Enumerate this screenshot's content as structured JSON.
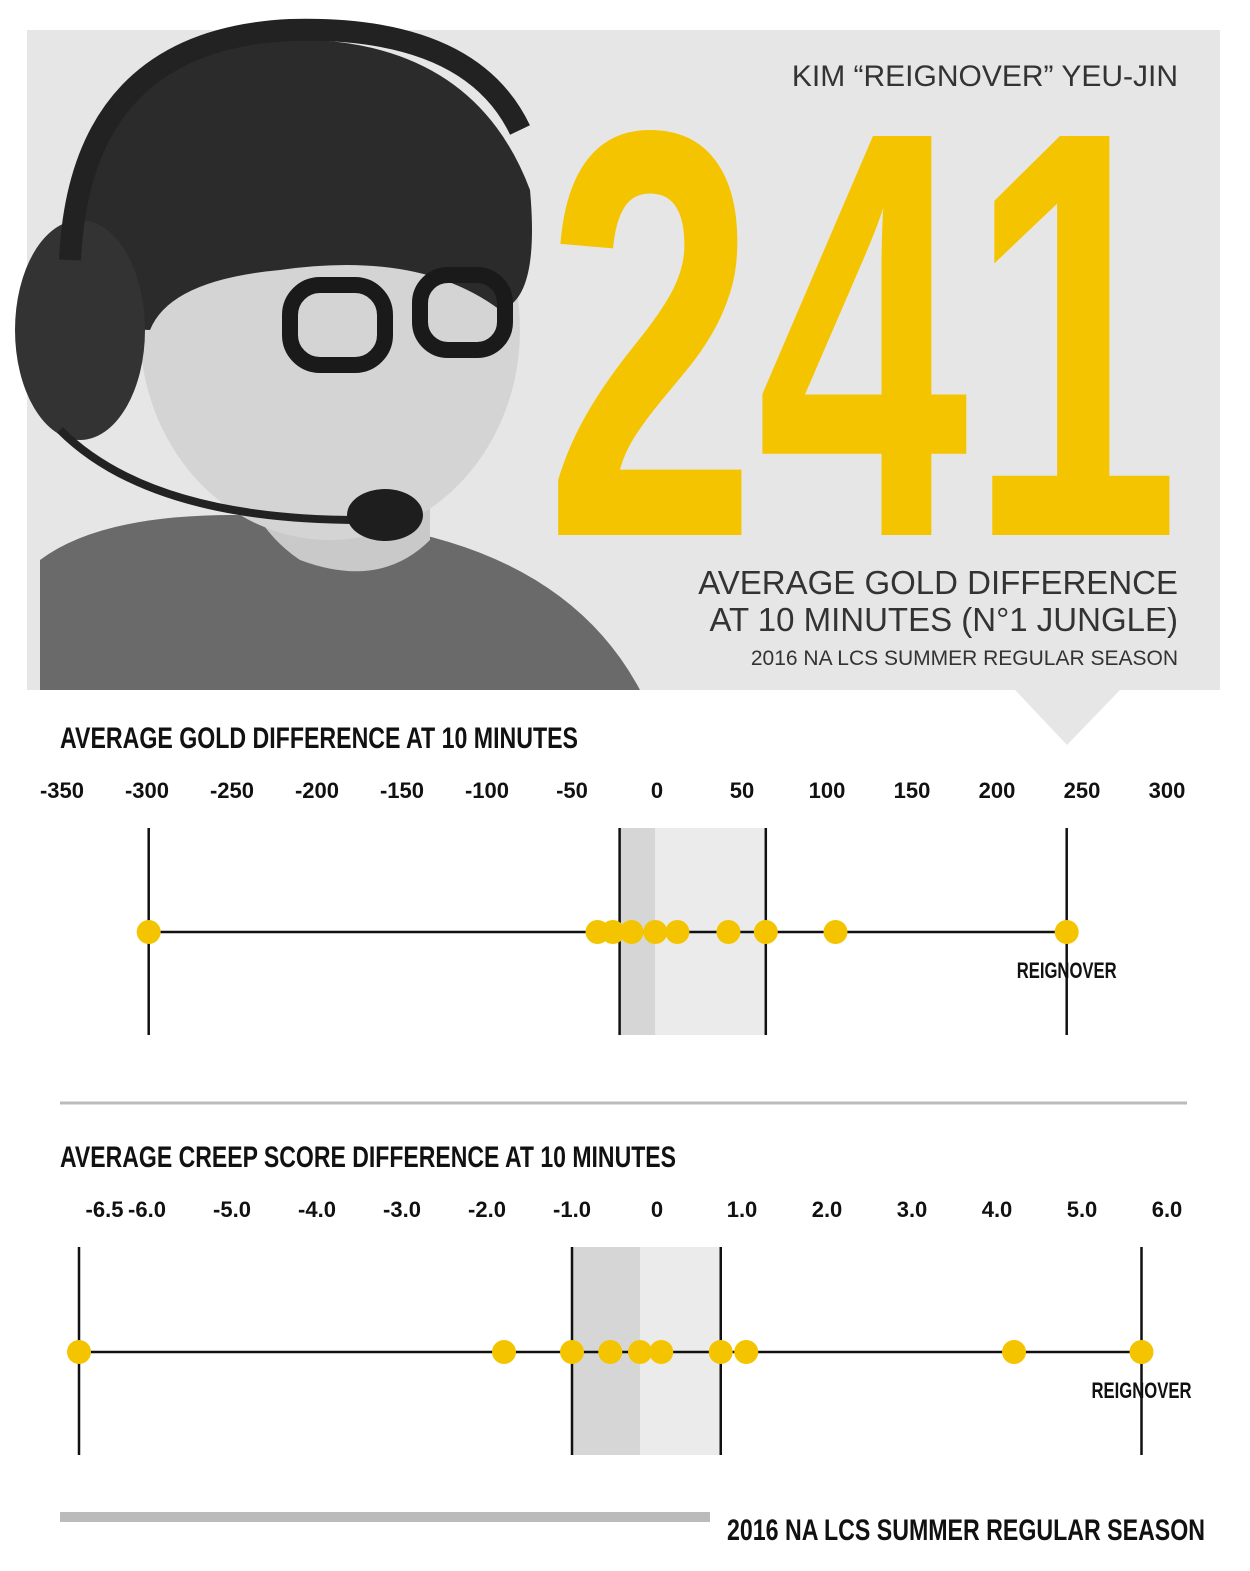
{
  "header": {
    "name": "KIM “REIGNOVER” YEU-JIN",
    "big_number": 241,
    "subtitle_lines": [
      "AVERAGE GOLD DIFFERENCE",
      "AT 10 MINUTES (N°1 JUNGLE)"
    ],
    "season": "2016 NA LCS SUMMER REGULAR SEASON"
  },
  "chart_data": [
    {
      "type": "strip",
      "title": "AVERAGE GOLD DIFFERENCE AT 10 MINUTES",
      "color": "#f5c400",
      "xlim": [
        -350,
        310
      ],
      "xticks": [
        -350,
        -300,
        -250,
        -200,
        -150,
        -100,
        -50,
        0,
        50,
        100,
        150,
        200,
        250,
        300
      ],
      "values": [
        -299,
        -35,
        -26,
        -15,
        -1,
        12,
        42,
        64,
        105,
        241
      ],
      "band": [
        -22,
        -1,
        64
      ],
      "annotations": [
        {
          "text": "REIGNOVER",
          "x": 241
        }
      ]
    },
    {
      "type": "strip",
      "title": "AVERAGE CREEP SCORE DIFFERENCE AT 10 MINUTES",
      "color": "#f5c400",
      "xlim": [
        -7,
        6.2
      ],
      "xticks": [
        -6.5,
        {
          "value": -6,
          "label": "-6.0"
        },
        {
          "value": -5,
          "label": "-5.0"
        },
        {
          "value": -4,
          "label": "-4.0"
        },
        {
          "value": -3,
          "label": "-3.0"
        },
        {
          "value": -2,
          "label": "-2.0"
        },
        {
          "value": -1,
          "label": "-1.0"
        },
        0,
        {
          "value": 1,
          "label": "1.0"
        },
        {
          "value": 2,
          "label": "2.0"
        },
        {
          "value": 3,
          "label": "3.0"
        },
        {
          "value": 4,
          "label": "4.0"
        },
        {
          "value": 5,
          "label": "5.0"
        },
        {
          "value": 6,
          "label": "6.0"
        }
      ],
      "values": [
        -6.8,
        -1.8,
        -1.0,
        -0.55,
        -0.2,
        0.05,
        0.75,
        1.05,
        4.2,
        5.7
      ],
      "band": [
        -1.0,
        -0.2,
        0.75
      ],
      "annotations": [
        {
          "text": "REIGNOVER",
          "x": 5.7
        }
      ]
    }
  ],
  "footer": "2016 NA LCS SUMMER REGULAR SEASON"
}
